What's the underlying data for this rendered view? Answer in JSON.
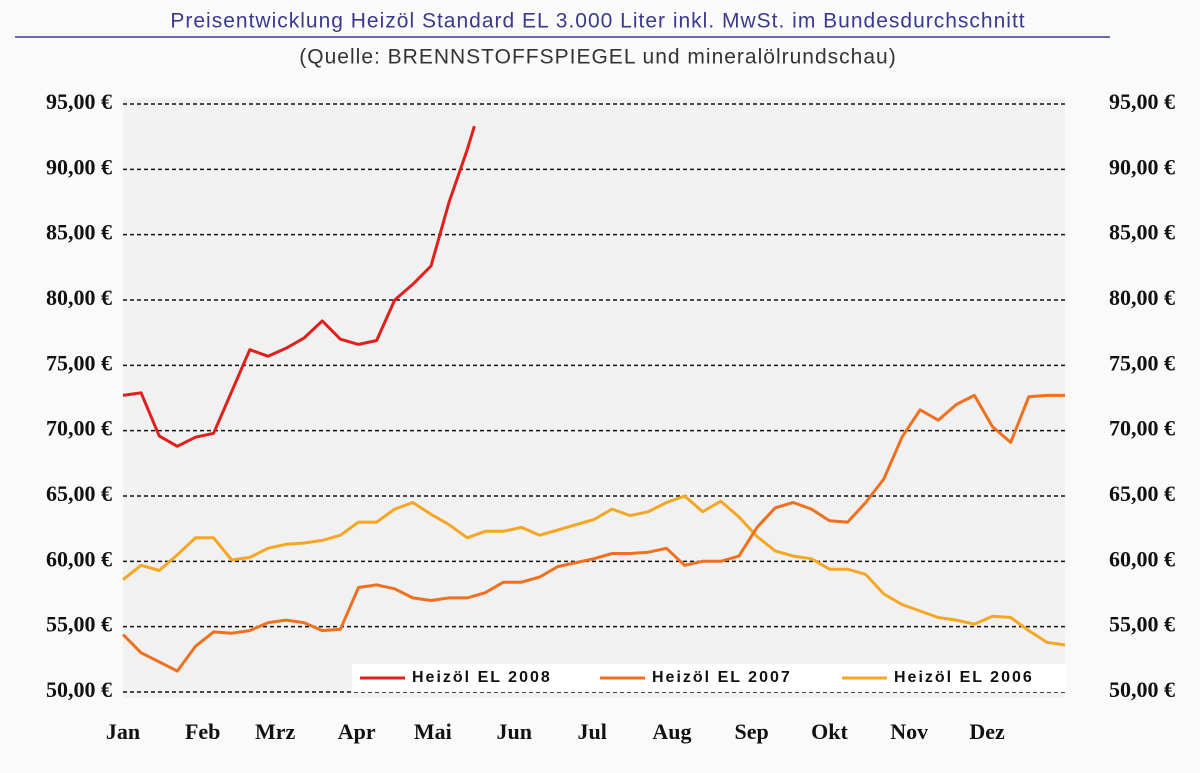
{
  "chart_data": {
    "type": "line",
    "title": "Preisentwicklung Heizöl Standard EL 3.000 Liter inkl. MwSt. im Bundesdurchschnitt",
    "subtitle": "(Quelle: BRENNSTOFFSPIEGEL und mineralölrundschau)",
    "xlim": [
      0,
      52
    ],
    "xticks": [
      {
        "value": 0,
        "label": "Jan"
      },
      {
        "value": 4.4,
        "label": "Feb"
      },
      {
        "value": 8.4,
        "label": "Mrz"
      },
      {
        "value": 12.9,
        "label": "Apr"
      },
      {
        "value": 17.1,
        "label": "Mai"
      },
      {
        "value": 21.6,
        "label": "Jun"
      },
      {
        "value": 25.9,
        "label": "Jul"
      },
      {
        "value": 30.3,
        "label": "Aug"
      },
      {
        "value": 34.7,
        "label": "Sep"
      },
      {
        "value": 39,
        "label": "Okt"
      },
      {
        "value": 43.4,
        "label": "Nov"
      },
      {
        "value": 47.7,
        "label": "Dez"
      }
    ],
    "ylim": [
      50,
      95
    ],
    "yticks": [
      {
        "value": 50,
        "label": "50,00 €"
      },
      {
        "value": 55,
        "label": "55,00 €"
      },
      {
        "value": 60,
        "label": "60,00 €"
      },
      {
        "value": 65,
        "label": "65,00 €"
      },
      {
        "value": 70,
        "label": "70,00 €"
      },
      {
        "value": 75,
        "label": "75,00 €"
      },
      {
        "value": 80,
        "label": "80,00 €"
      },
      {
        "value": 85,
        "label": "85,00 €"
      },
      {
        "value": 90,
        "label": "90,00 €"
      },
      {
        "value": 95,
        "label": "95,00 €"
      }
    ],
    "y2lim": [
      50,
      95
    ],
    "y2ticks": [
      {
        "value": 50,
        "label": "50,00 €"
      },
      {
        "value": 55,
        "label": "55,00 €"
      },
      {
        "value": 60,
        "label": "60,00 €"
      },
      {
        "value": 65,
        "label": "65,00 €"
      },
      {
        "value": 70,
        "label": "70,00 €"
      },
      {
        "value": 75,
        "label": "75,00 €"
      },
      {
        "value": 80,
        "label": "80,00 €"
      },
      {
        "value": 85,
        "label": "85,00 €"
      },
      {
        "value": 90,
        "label": "90,00 €"
      },
      {
        "value": 95,
        "label": "95,00 €"
      }
    ],
    "grid": true,
    "legend": "bottom",
    "series": [
      {
        "name": "Heizöl EL 2008",
        "color": "#e0201c",
        "x": [
          0,
          1,
          2,
          3,
          4,
          5,
          6,
          7,
          8,
          9,
          10,
          11,
          12,
          13,
          14,
          15,
          16,
          17,
          18,
          19,
          19.4
        ],
        "values": [
          72.7,
          72.9,
          69.6,
          68.8,
          69.5,
          69.8,
          73.0,
          76.2,
          75.7,
          76.3,
          77.1,
          78.4,
          77.0,
          76.6,
          76.9,
          80.0,
          81.2,
          82.6,
          87.5,
          91.5,
          93.3
        ]
      },
      {
        "name": "Heizöl EL 2007",
        "color": "#f07020",
        "x": [
          0,
          1,
          2,
          3,
          4,
          5,
          6,
          7,
          8,
          9,
          10,
          11,
          12,
          13,
          14,
          15,
          16,
          17,
          18,
          19,
          20,
          21,
          22,
          23,
          24,
          25,
          26,
          27,
          28,
          29,
          30,
          31,
          32,
          33,
          34,
          35,
          36,
          37,
          38,
          39,
          40,
          41,
          42,
          43,
          44,
          45,
          46,
          47,
          48,
          49,
          50,
          51,
          52
        ],
        "values": [
          54.4,
          53.0,
          52.3,
          51.6,
          53.5,
          54.6,
          54.5,
          54.7,
          55.3,
          55.5,
          55.3,
          54.7,
          54.8,
          58.0,
          58.2,
          57.9,
          57.2,
          57.0,
          57.2,
          57.2,
          57.6,
          58.4,
          58.4,
          58.8,
          59.6,
          59.9,
          60.2,
          60.6,
          60.6,
          60.7,
          61.0,
          59.7,
          60.0,
          60.0,
          60.4,
          62.6,
          64.1,
          64.5,
          64.0,
          63.1,
          63.0,
          64.5,
          66.3,
          69.5,
          71.6,
          70.8,
          72.0,
          72.7,
          70.3,
          69.1,
          72.6,
          72.7,
          72.7
        ]
      },
      {
        "name": "Heizöl EL 2006",
        "color": "#f5a623",
        "x": [
          0,
          1,
          2,
          3,
          4,
          5,
          6,
          7,
          8,
          9,
          10,
          11,
          12,
          13,
          14,
          15,
          16,
          17,
          18,
          19,
          20,
          21,
          22,
          23,
          24,
          25,
          26,
          27,
          28,
          29,
          30,
          31,
          32,
          33,
          34,
          35,
          36,
          37,
          38,
          39,
          40,
          41,
          42,
          43,
          44,
          45,
          46,
          47,
          48,
          49,
          50,
          51,
          52
        ],
        "values": [
          58.6,
          59.7,
          59.3,
          60.5,
          61.8,
          61.8,
          60.1,
          60.3,
          61.0,
          61.3,
          61.4,
          61.6,
          62.0,
          63.0,
          63.0,
          64.0,
          64.5,
          63.6,
          62.8,
          61.8,
          62.3,
          62.3,
          62.6,
          62.0,
          62.4,
          62.8,
          63.2,
          64.0,
          63.5,
          63.8,
          64.5,
          65.0,
          63.8,
          64.6,
          63.4,
          61.9,
          60.8,
          60.4,
          60.2,
          59.4,
          59.4,
          59.0,
          57.5,
          56.7,
          56.2,
          55.7,
          55.5,
          55.2,
          55.8,
          55.7,
          54.7,
          53.8,
          53.6
        ]
      }
    ]
  }
}
